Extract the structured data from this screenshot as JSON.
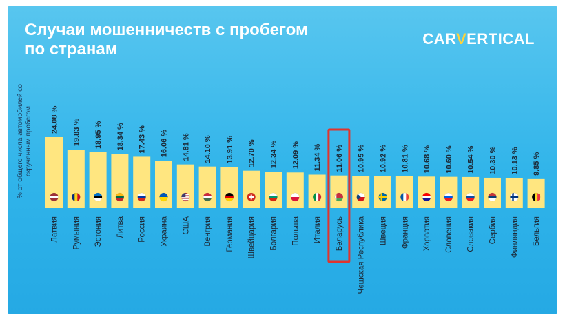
{
  "header": {
    "title_line1": "Случаи мошенничеств с пробегом",
    "title_line2": "по странам",
    "logo_left": "CAR",
    "logo_v": "V",
    "logo_right": "ERTICAL"
  },
  "chart_data": {
    "type": "bar",
    "ylabel": "% от общего числа автомобилей со скрученным пробегом",
    "ylim": [
      0,
      26
    ],
    "value_suffix": " %",
    "bar_color": "#ffe680",
    "highlight_color": "#e0342d",
    "highlight_category": "Беларусь",
    "categories": [
      "Латвия",
      "Румыния",
      "Эстония",
      "Литва",
      "Россия",
      "Украина",
      "США",
      "Венгрия",
      "Германия",
      "Швейцария",
      "Болгария",
      "Польша",
      "Италия",
      "Беларусь",
      "Чешская Республика",
      "Швеция",
      "Франция",
      "Хорватия",
      "Словения",
      "Словакия",
      "Сербия",
      "Финляндия",
      "Бельгия"
    ],
    "values": [
      24.08,
      19.83,
      18.95,
      18.34,
      17.43,
      16.06,
      14.81,
      14.1,
      13.91,
      12.7,
      12.34,
      12.09,
      11.34,
      11.06,
      10.95,
      10.92,
      10.81,
      10.68,
      10.6,
      10.54,
      10.3,
      10.13,
      9.85
    ],
    "value_labels": [
      "24.08",
      "19.83",
      "18.95",
      "18.34",
      "17.43",
      "16.06",
      "14.81",
      "14.10",
      "13.91",
      "12.70",
      "12.34",
      "12.09",
      "11.34",
      "11.06",
      "10.95",
      "10.92",
      "10.81",
      "10.68",
      "10.60",
      "10.54",
      "10.30",
      "10.13",
      "9.85"
    ],
    "flags": [
      {
        "icon": "flag-latvia",
        "type": "h",
        "colors": [
          "#9e3039",
          "#ffffff",
          "#9e3039"
        ]
      },
      {
        "icon": "flag-romania",
        "type": "v",
        "colors": [
          "#002b7f",
          "#fcd116",
          "#ce1126"
        ]
      },
      {
        "icon": "flag-estonia",
        "type": "h",
        "colors": [
          "#0072ce",
          "#000000",
          "#ffffff"
        ]
      },
      {
        "icon": "flag-lithuania",
        "type": "h",
        "colors": [
          "#fdb913",
          "#006a44",
          "#c1272d"
        ]
      },
      {
        "icon": "flag-russia",
        "type": "h",
        "colors": [
          "#ffffff",
          "#0039a6",
          "#d52b1e"
        ]
      },
      {
        "icon": "flag-ukraine",
        "type": "h",
        "colors": [
          "#0057b7",
          "#ffd700"
        ]
      },
      {
        "icon": "flag-usa",
        "type": "us",
        "colors": [
          "#b22234",
          "#ffffff",
          "#3c3b6e"
        ]
      },
      {
        "icon": "flag-hungary",
        "type": "h",
        "colors": [
          "#cd2a3e",
          "#ffffff",
          "#436f4d"
        ]
      },
      {
        "icon": "flag-germany",
        "type": "h",
        "colors": [
          "#000000",
          "#dd0000",
          "#ffce00"
        ]
      },
      {
        "icon": "flag-switzerland",
        "type": "cross",
        "colors": [
          "#d52b1e",
          "#ffffff"
        ]
      },
      {
        "icon": "flag-bulgaria",
        "type": "h",
        "colors": [
          "#ffffff",
          "#00966e",
          "#d62612"
        ]
      },
      {
        "icon": "flag-poland",
        "type": "h",
        "colors": [
          "#ffffff",
          "#dc143c"
        ]
      },
      {
        "icon": "flag-italy",
        "type": "v",
        "colors": [
          "#009246",
          "#ffffff",
          "#ce2b37"
        ]
      },
      {
        "icon": "flag-belarus",
        "type": "by",
        "colors": [
          "#c8313e",
          "#4aa657",
          "#ffffff"
        ]
      },
      {
        "icon": "flag-czechia",
        "type": "cz",
        "colors": [
          "#ffffff",
          "#d7141a",
          "#11457e"
        ]
      },
      {
        "icon": "flag-sweden",
        "type": "nordic",
        "colors": [
          "#006aa7",
          "#fecc00"
        ]
      },
      {
        "icon": "flag-france",
        "type": "v",
        "colors": [
          "#0055a4",
          "#ffffff",
          "#ef4135"
        ]
      },
      {
        "icon": "flag-croatia",
        "type": "h",
        "colors": [
          "#ff0000",
          "#ffffff",
          "#171796"
        ]
      },
      {
        "icon": "flag-slovenia",
        "type": "h",
        "colors": [
          "#ffffff",
          "#005ce5",
          "#ed1c24"
        ]
      },
      {
        "icon": "flag-slovakia",
        "type": "h",
        "colors": [
          "#ffffff",
          "#0b4ea2",
          "#ee1c25"
        ]
      },
      {
        "icon": "flag-serbia",
        "type": "h",
        "colors": [
          "#c6363c",
          "#0c4076",
          "#ffffff"
        ]
      },
      {
        "icon": "flag-finland",
        "type": "nordic",
        "colors": [
          "#ffffff",
          "#003580"
        ]
      },
      {
        "icon": "flag-belgium",
        "type": "v",
        "colors": [
          "#000000",
          "#fdda24",
          "#ef3340"
        ]
      }
    ]
  }
}
